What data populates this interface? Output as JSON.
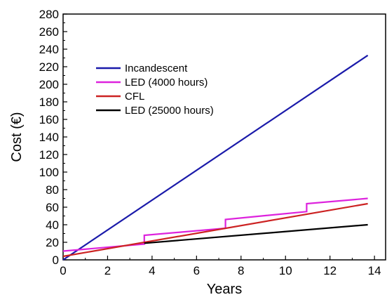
{
  "chart_data": {
    "type": "line",
    "title": "",
    "xlabel": "Years",
    "ylabel": "Cost (€)",
    "xlim": [
      0,
      14.5
    ],
    "ylim": [
      0,
      280
    ],
    "x_ticks": [
      0,
      2,
      4,
      6,
      8,
      10,
      12,
      14
    ],
    "y_ticks": [
      0,
      20,
      40,
      60,
      80,
      100,
      120,
      140,
      160,
      180,
      200,
      220,
      240,
      260,
      280
    ],
    "grid": false,
    "legend_position": "top-left",
    "series": [
      {
        "name": "Incandescent",
        "color": "#1a1aaa",
        "points": [
          [
            0,
            0
          ],
          [
            13.7,
            233
          ]
        ]
      },
      {
        "name": "LED (4000 hours)",
        "color": "#dd22dd",
        "points": [
          [
            0,
            10
          ],
          [
            3.65,
            18
          ],
          [
            3.65,
            28
          ],
          [
            7.3,
            36
          ],
          [
            7.3,
            46
          ],
          [
            10.95,
            55
          ],
          [
            10.95,
            64
          ],
          [
            13.7,
            70
          ]
        ]
      },
      {
        "name": "CFL",
        "color": "#cc2222",
        "points": [
          [
            0,
            4
          ],
          [
            13.7,
            64
          ]
        ]
      },
      {
        "name": "LED (25000 hours)",
        "color": "#000000",
        "points": [
          [
            3.65,
            19
          ],
          [
            13.7,
            40
          ]
        ]
      }
    ]
  }
}
